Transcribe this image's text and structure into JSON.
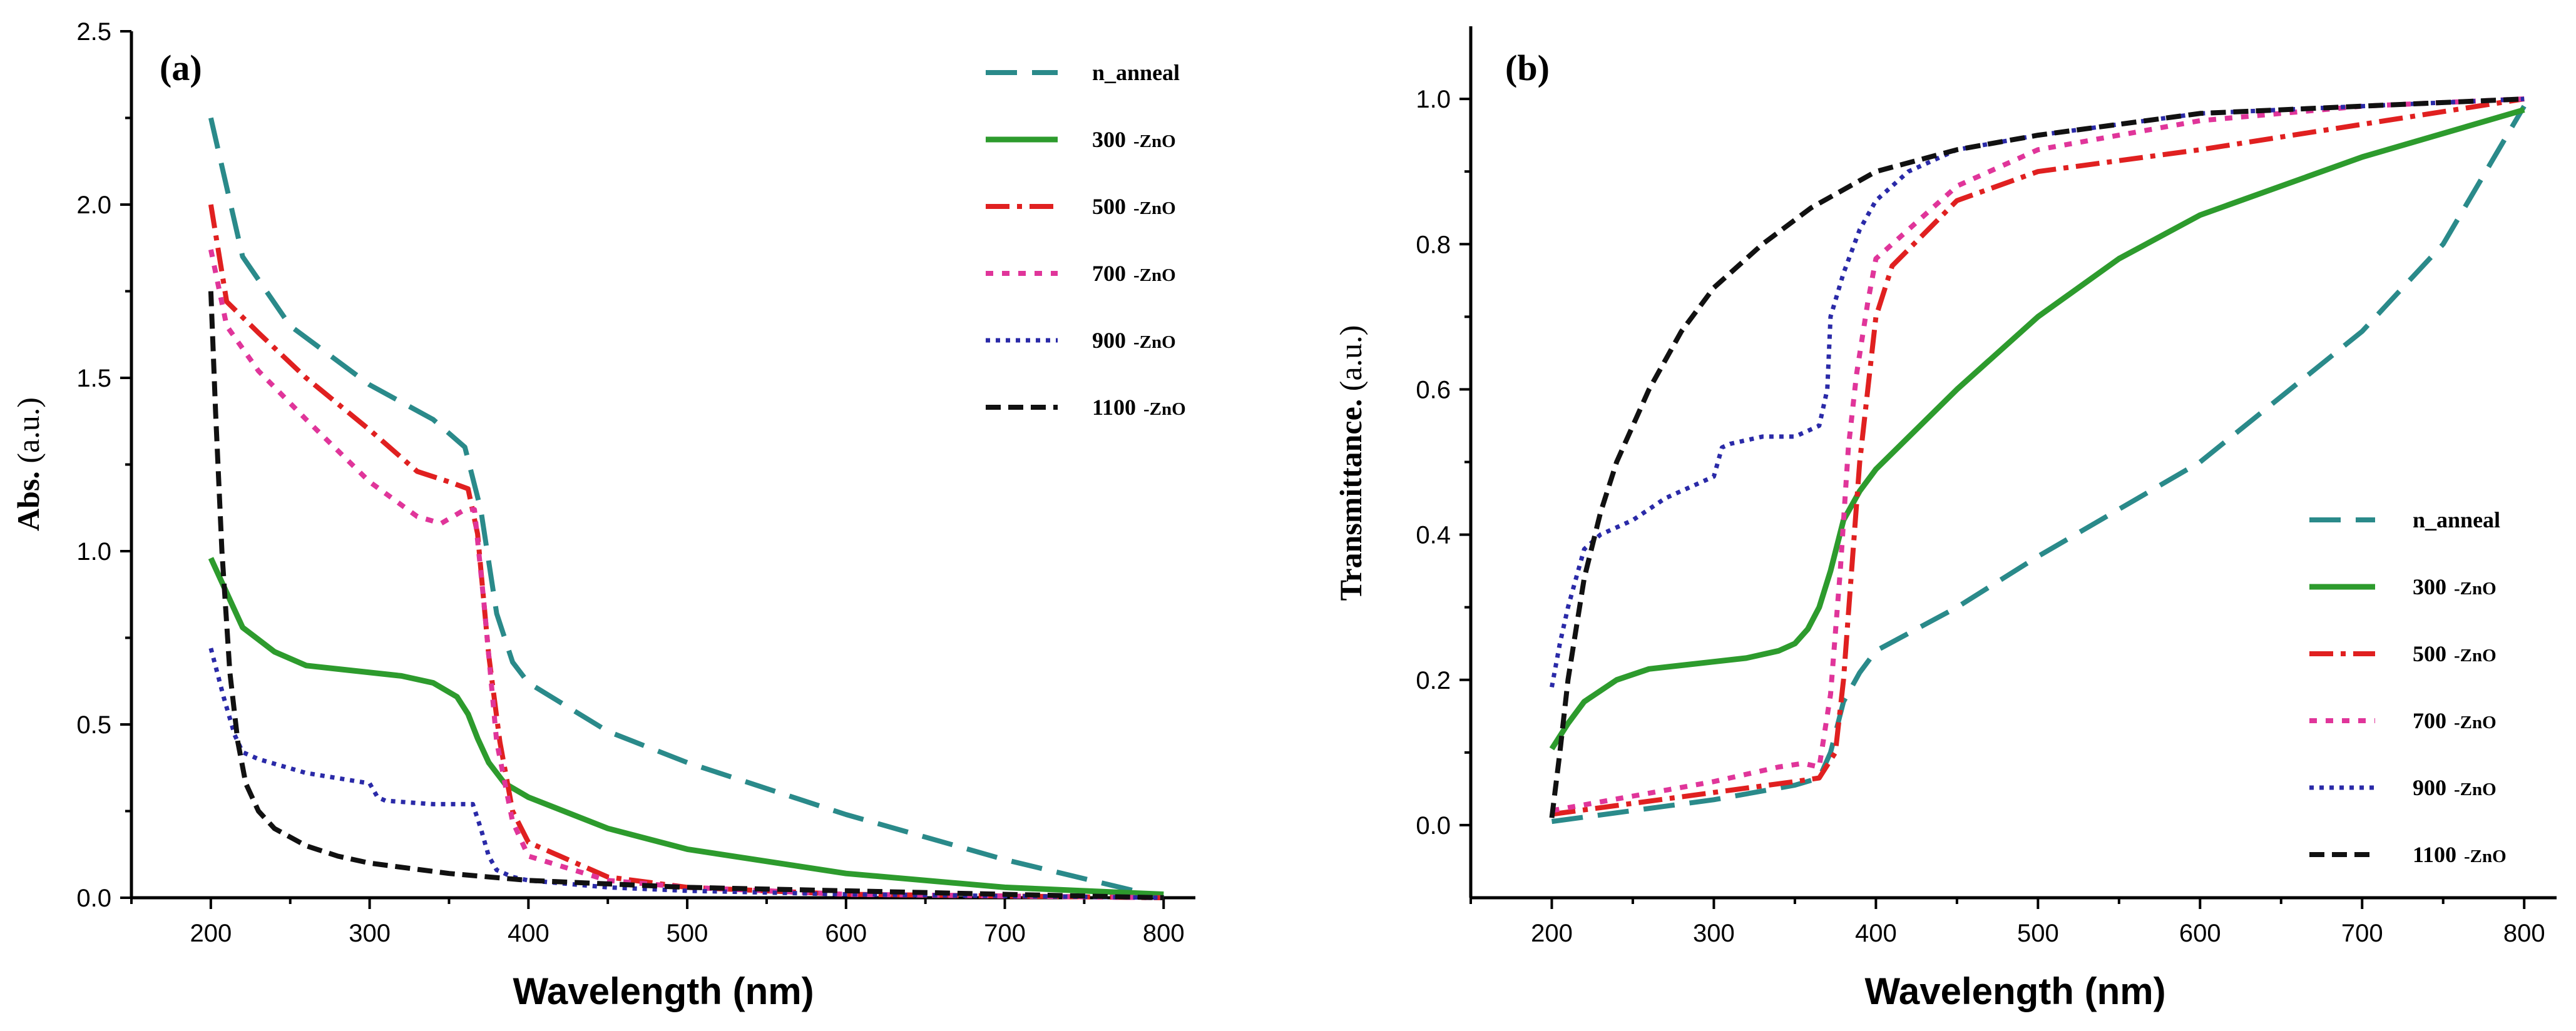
{
  "chart_data": [
    {
      "type": "line",
      "panel_label": "(a)",
      "title": "",
      "xlabel": "Wavelength (nm)",
      "ylabel": "Abs.",
      "ylabel_unit": "(a.u.)",
      "xlim": [
        150,
        820
      ],
      "ylim": [
        0,
        2.5
      ],
      "xticks": [
        200,
        300,
        400,
        500,
        600,
        700,
        800
      ],
      "yticks": [
        0.0,
        0.5,
        1.0,
        1.5,
        2.0,
        2.5
      ],
      "ytick_labels": [
        "0.0",
        "0.5",
        "1.0",
        "1.5",
        "2.0",
        "2.5"
      ],
      "legend_position": "top-right",
      "grid": false,
      "series": [
        {
          "name": "n_anneal",
          "label_main": "n_anneal",
          "label_suffix": "",
          "color": "#2a8a8a",
          "dash": "50,24",
          "width": 8,
          "x": [
            200,
            220,
            250,
            300,
            340,
            360,
            370,
            380,
            390,
            400,
            450,
            500,
            600,
            700,
            800
          ],
          "y": [
            2.25,
            1.85,
            1.65,
            1.48,
            1.38,
            1.3,
            1.12,
            0.82,
            0.68,
            0.62,
            0.48,
            0.39,
            0.24,
            0.11,
            0.0
          ]
        },
        {
          "name": "300 -ZnO",
          "label_main": "300",
          "label_suffix": "-ZnO",
          "color": "#2d9b2d",
          "dash": "",
          "width": 9,
          "x": [
            200,
            210,
            220,
            240,
            260,
            280,
            300,
            320,
            340,
            355,
            362,
            368,
            375,
            385,
            400,
            450,
            500,
            600,
            700,
            800
          ],
          "y": [
            0.98,
            0.88,
            0.78,
            0.71,
            0.67,
            0.66,
            0.65,
            0.64,
            0.62,
            0.58,
            0.53,
            0.46,
            0.39,
            0.33,
            0.29,
            0.2,
            0.14,
            0.07,
            0.03,
            0.01
          ]
        },
        {
          "name": "500 -ZnO",
          "label_main": "500",
          "label_suffix": "-ZnO",
          "color": "#e02020",
          "dash": "38,12,8,12",
          "width": 8,
          "x": [
            200,
            210,
            230,
            260,
            300,
            330,
            350,
            362,
            368,
            375,
            382,
            390,
            400,
            450,
            500,
            600,
            700,
            800
          ],
          "y": [
            2.0,
            1.72,
            1.63,
            1.5,
            1.35,
            1.23,
            1.2,
            1.18,
            1.05,
            0.7,
            0.45,
            0.25,
            0.16,
            0.06,
            0.03,
            0.01,
            0.005,
            0.0
          ]
        },
        {
          "name": "700 -ZnO",
          "label_main": "700",
          "label_suffix": "-ZnO",
          "color": "#e0359a",
          "dash": "12,14",
          "width": 8,
          "x": [
            200,
            210,
            230,
            260,
            300,
            330,
            345,
            360,
            366,
            372,
            380,
            390,
            400,
            450,
            500,
            600,
            700,
            800
          ],
          "y": [
            1.87,
            1.65,
            1.52,
            1.38,
            1.2,
            1.1,
            1.08,
            1.12,
            1.12,
            0.85,
            0.45,
            0.22,
            0.12,
            0.05,
            0.03,
            0.01,
            0.005,
            0.0
          ]
        },
        {
          "name": "900 -ZnO",
          "label_main": "900",
          "label_suffix": "-ZnO",
          "color": "#2a2aa8",
          "dash": "7,9",
          "width": 7,
          "x": [
            200,
            208,
            215,
            220,
            230,
            260,
            300,
            305,
            310,
            340,
            365,
            370,
            375,
            380,
            390,
            400,
            450,
            500,
            600,
            700,
            800
          ],
          "y": [
            0.72,
            0.58,
            0.47,
            0.42,
            0.4,
            0.36,
            0.33,
            0.29,
            0.28,
            0.27,
            0.27,
            0.2,
            0.12,
            0.08,
            0.06,
            0.05,
            0.03,
            0.02,
            0.01,
            0.005,
            0.0
          ]
        },
        {
          "name": "1100 -ZnO",
          "label_main": "1100",
          "label_suffix": "-ZnO",
          "color": "#111111",
          "dash": "24,12",
          "width": 8,
          "x": [
            200,
            203,
            207,
            212,
            217,
            222,
            230,
            240,
            260,
            280,
            300,
            350,
            400,
            500,
            600,
            700,
            800
          ],
          "y": [
            1.75,
            1.4,
            1.0,
            0.65,
            0.45,
            0.33,
            0.25,
            0.2,
            0.15,
            0.12,
            0.1,
            0.07,
            0.05,
            0.03,
            0.02,
            0.01,
            0.0
          ]
        }
      ]
    },
    {
      "type": "line",
      "panel_label": "(b)",
      "title": "",
      "xlabel": "Wavelength (nm)",
      "ylabel": "Transmittance.",
      "ylabel_unit": "(a.u.)",
      "xlim": [
        150,
        820
      ],
      "ylim": [
        -0.1,
        1.1
      ],
      "xticks": [
        200,
        300,
        400,
        500,
        600,
        700,
        800
      ],
      "yticks": [
        0.0,
        0.2,
        0.4,
        0.6,
        0.8,
        1.0
      ],
      "ytick_labels": [
        "0.0",
        "0.2",
        "0.4",
        "0.6",
        "0.8",
        "1.0"
      ],
      "legend_position": "bottom-right",
      "grid": false,
      "series": [
        {
          "name": "n_anneal",
          "label_main": "n_anneal",
          "label_suffix": "",
          "color": "#2a8a8a",
          "dash": "50,24",
          "width": 8,
          "x": [
            200,
            250,
            300,
            350,
            365,
            372,
            380,
            390,
            400,
            450,
            500,
            600,
            700,
            750,
            800
          ],
          "y": [
            0.005,
            0.02,
            0.035,
            0.055,
            0.065,
            0.1,
            0.17,
            0.21,
            0.24,
            0.3,
            0.37,
            0.5,
            0.68,
            0.8,
            0.99
          ]
        },
        {
          "name": "300 -ZnO",
          "label_main": "300",
          "label_suffix": "-ZnO",
          "color": "#2d9b2d",
          "dash": "",
          "width": 9,
          "x": [
            200,
            210,
            220,
            240,
            260,
            280,
            300,
            320,
            340,
            350,
            358,
            365,
            372,
            380,
            390,
            400,
            450,
            500,
            550,
            600,
            700,
            800
          ],
          "y": [
            0.105,
            0.14,
            0.17,
            0.2,
            0.215,
            0.22,
            0.225,
            0.23,
            0.24,
            0.25,
            0.27,
            0.3,
            0.35,
            0.42,
            0.46,
            0.49,
            0.6,
            0.7,
            0.78,
            0.84,
            0.92,
            0.985
          ]
        },
        {
          "name": "500 -ZnO",
          "label_main": "500",
          "label_suffix": "-ZnO",
          "color": "#e02020",
          "dash": "38,12,8,12",
          "width": 8,
          "x": [
            200,
            250,
            300,
            350,
            365,
            375,
            380,
            385,
            390,
            395,
            400,
            410,
            450,
            500,
            600,
            700,
            800
          ],
          "y": [
            0.015,
            0.03,
            0.045,
            0.06,
            0.065,
            0.1,
            0.2,
            0.35,
            0.5,
            0.6,
            0.7,
            0.77,
            0.86,
            0.9,
            0.93,
            0.965,
            1.0
          ]
        },
        {
          "name": "700 -ZnO",
          "label_main": "700",
          "label_suffix": "-ZnO",
          "color": "#e0359a",
          "dash": "12,14",
          "width": 8,
          "x": [
            200,
            250,
            300,
            340,
            355,
            365,
            372,
            378,
            383,
            388,
            395,
            400,
            450,
            500,
            600,
            700,
            800
          ],
          "y": [
            0.02,
            0.04,
            0.06,
            0.08,
            0.085,
            0.08,
            0.18,
            0.35,
            0.52,
            0.62,
            0.72,
            0.78,
            0.88,
            0.93,
            0.97,
            0.99,
            1.0
          ]
        },
        {
          "name": "900 -ZnO",
          "label_main": "900",
          "label_suffix": "-ZnO",
          "color": "#2a2aa8",
          "dash": "7,9",
          "width": 7,
          "x": [
            200,
            205,
            210,
            215,
            220,
            230,
            250,
            270,
            290,
            300,
            305,
            310,
            330,
            350,
            365,
            370,
            372,
            380,
            390,
            400,
            420,
            450,
            500,
            600,
            700,
            800
          ],
          "y": [
            0.19,
            0.25,
            0.3,
            0.34,
            0.38,
            0.4,
            0.42,
            0.45,
            0.47,
            0.48,
            0.52,
            0.525,
            0.535,
            0.535,
            0.55,
            0.6,
            0.7,
            0.76,
            0.82,
            0.86,
            0.9,
            0.93,
            0.95,
            0.98,
            0.99,
            1.0
          ]
        },
        {
          "name": "1100 -ZnO",
          "label_main": "1100",
          "label_suffix": "-ZnO",
          "color": "#111111",
          "dash": "24,12",
          "width": 8,
          "x": [
            200,
            205,
            210,
            215,
            220,
            230,
            240,
            260,
            280,
            300,
            330,
            360,
            400,
            450,
            500,
            600,
            700,
            800
          ],
          "y": [
            0.01,
            0.1,
            0.2,
            0.27,
            0.34,
            0.43,
            0.5,
            0.6,
            0.68,
            0.74,
            0.8,
            0.85,
            0.9,
            0.93,
            0.95,
            0.98,
            0.99,
            1.0
          ]
        }
      ]
    }
  ]
}
